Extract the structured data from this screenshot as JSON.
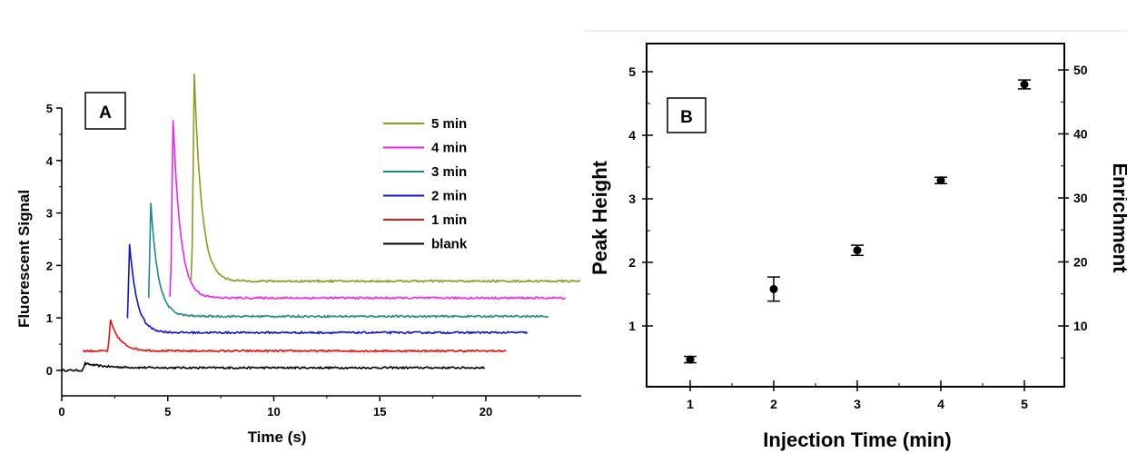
{
  "chart_data": [
    {
      "type": "line",
      "panel_label": "A",
      "xlabel": "Time (s)",
      "ylabel": "Fluorescent Signal",
      "xlim": [
        0,
        24.5
      ],
      "ylim": [
        -0.4,
        5.0
      ],
      "xticks": [
        0,
        5,
        10,
        15,
        20
      ],
      "yticks": [
        0,
        1,
        2,
        3,
        4,
        5
      ],
      "legend_position": "top-right",
      "series": [
        {
          "name": "5 min",
          "color": "#8c9a1e",
          "baseline": 1.7,
          "start": 6.1,
          "end": 24.5,
          "peak_time": 6.25,
          "peak_height": 5.65
        },
        {
          "name": "4 min",
          "color": "#ee22ee",
          "baseline": 1.38,
          "start": 5.1,
          "end": 23.8,
          "peak_time": 5.25,
          "peak_height": 4.78
        },
        {
          "name": "3 min",
          "color": "#1a8a8a",
          "baseline": 1.03,
          "start": 4.1,
          "end": 23.0,
          "peak_time": 4.2,
          "peak_height": 3.18
        },
        {
          "name": "2 min",
          "color": "#1010dd",
          "baseline": 0.72,
          "start": 3.1,
          "end": 22.0,
          "peak_time": 3.2,
          "peak_height": 2.4
        },
        {
          "name": "1 min",
          "color": "#ee1111",
          "baseline": 0.37,
          "start": 1.0,
          "end": 21.0,
          "peak_time": 2.3,
          "peak_height": 0.95
        },
        {
          "name": "blank",
          "color": "#000000",
          "baseline": 0.05,
          "start": 0.0,
          "end": 20.0,
          "peak_time": 1.1,
          "peak_height": 0.13
        }
      ]
    },
    {
      "type": "scatter",
      "panel_label": "B",
      "xlabel": "Injection Time (min)",
      "ylabel": "Peak Height",
      "y2label": "Enrichment",
      "xlim": [
        0.5,
        5.5
      ],
      "ylim": [
        0.05,
        5.45
      ],
      "y2lim": [
        0.5,
        54.5
      ],
      "xticks": [
        1,
        2,
        3,
        4,
        5
      ],
      "yticks": [
        1,
        2,
        3,
        4,
        5
      ],
      "y2ticks": [
        10,
        20,
        30,
        40,
        50
      ],
      "x": [
        1,
        2,
        3,
        4,
        5
      ],
      "y": [
        0.47,
        1.58,
        2.19,
        3.29,
        4.8
      ],
      "yerr": [
        0.05,
        0.19,
        0.08,
        0.05,
        0.07
      ]
    }
  ]
}
